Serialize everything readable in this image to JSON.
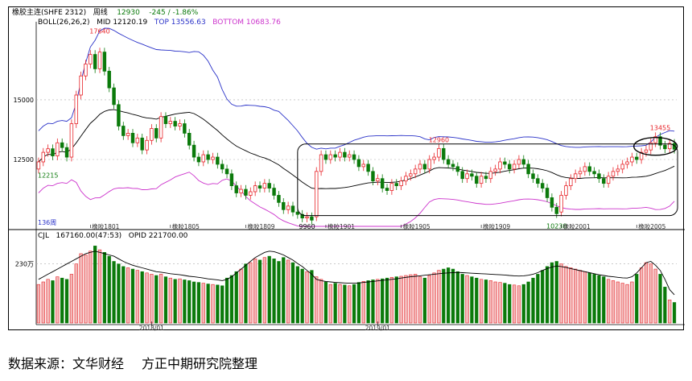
{
  "header": {
    "name": "橡胶主连(SHFE 2312)",
    "period": "周线",
    "price": "12930",
    "change": "-245 / -1.86%"
  },
  "boll": {
    "label": "BOLL(26,26,2)",
    "mid_label": "MID 12120.19",
    "top_label": "TOP 13556.63",
    "bottom_label": "BOTTOM 10683.76"
  },
  "volume_header": {
    "label": "CJL",
    "vol_label": "167160.00(47:53)",
    "oi_label": "OPID 221700.00"
  },
  "source": {
    "prefix": "数据来源：文华财经",
    "suffix": "方正中期研究院整理"
  },
  "chart_data": {
    "type": "candlestick",
    "y_ticks": [
      "15000",
      "12500"
    ],
    "ylim": [
      9700,
      18000
    ],
    "x_ticks": [
      "橡胶1801",
      "橡胶1805",
      "橡胶1809",
      "橡胶1901",
      "橡胶1905",
      "橡胶1909",
      "橡胶2001",
      "橡胶2005"
    ],
    "bottom_x_ticks": [
      "2018/01",
      "2019/01"
    ],
    "vol_tick": "230万",
    "annotations": {
      "high": "17640",
      "first_low": "12215",
      "mid_peak": "12960",
      "low": "10230",
      "right_high": "13455",
      "bar_count": "136周",
      "low_1901": "9960"
    },
    "colors": {
      "up": "#e8252a",
      "down": "#0b7a0b",
      "mid": "#000000",
      "top": "#2a32c8",
      "bottom": "#cc33cc",
      "vol_up_fill": "#f2b8b8"
    },
    "close": [
      12400,
      12800,
      12950,
      12650,
      13200,
      13000,
      12600,
      14000,
      15200,
      16000,
      16500,
      16900,
      16300,
      17000,
      16200,
      15500,
      14800,
      13900,
      13500,
      13600,
      13200,
      13400,
      12900,
      13300,
      13800,
      13400,
      14300,
      14000,
      14100,
      13900,
      14000,
      13600,
      13100,
      12600,
      12400,
      12700,
      12500,
      12600,
      12300,
      12100,
      11900,
      11400,
      11100,
      11250,
      11000,
      11150,
      11400,
      11300,
      11500,
      11300,
      11000,
      10700,
      10400,
      10550,
      10300,
      10200,
      10050,
      10100,
      9960,
      12000,
      12700,
      12500,
      12700,
      12600,
      12800,
      12600,
      12700,
      12500,
      12200,
      12300,
      12000,
      11600,
      11700,
      11300,
      11200,
      11500,
      11400,
      11600,
      11800,
      11900,
      12100,
      12300,
      12100,
      12500,
      12600,
      12960,
      12500,
      12300,
      12200,
      12000,
      11700,
      11900,
      11800,
      11500,
      11800,
      11700,
      12000,
      12100,
      12400,
      12300,
      12100,
      12300,
      12500,
      12300,
      11900,
      11700,
      11500,
      11300,
      10900,
      10500,
      10230,
      11000,
      11400,
      11700,
      11900,
      12000,
      12200,
      12000,
      11900,
      11700,
      11500,
      11800,
      12000,
      12100,
      12300,
      12400,
      12600,
      12500,
      12800,
      12900,
      13200,
      13455,
      13100,
      12950,
      13175,
      12930
    ],
    "open": [
      12100,
      12400,
      12800,
      12950,
      12650,
      13200,
      13000,
      12600,
      14000,
      15200,
      16000,
      16500,
      16900,
      16300,
      17000,
      16200,
      15500,
      14800,
      13900,
      13500,
      13600,
      13200,
      13400,
      12900,
      13300,
      13800,
      13400,
      14300,
      14000,
      14100,
      13900,
      14000,
      13600,
      13100,
      12600,
      12400,
      12700,
      12500,
      12600,
      12300,
      12100,
      11900,
      11400,
      11100,
      11250,
      11000,
      11150,
      11400,
      11300,
      11500,
      11300,
      11000,
      10700,
      10400,
      10550,
      10300,
      10200,
      10050,
      10100,
      10100,
      12000,
      12700,
      12500,
      12700,
      12600,
      12800,
      12600,
      12700,
      12500,
      12200,
      12300,
      12000,
      11600,
      11700,
      11300,
      11200,
      11500,
      11400,
      11600,
      11800,
      11900,
      12100,
      12300,
      12100,
      12500,
      12600,
      12960,
      12500,
      12300,
      12200,
      12000,
      11700,
      11900,
      11800,
      11500,
      11800,
      11700,
      12000,
      12100,
      12400,
      12300,
      12100,
      12300,
      12500,
      12300,
      11900,
      11700,
      11500,
      11300,
      10900,
      10500,
      10300,
      11000,
      11400,
      11700,
      11900,
      12000,
      12200,
      12000,
      11900,
      11700,
      11500,
      11800,
      12000,
      12100,
      12300,
      12400,
      12600,
      12500,
      12800,
      12900,
      13200,
      13455,
      13100,
      12950,
      13175
    ],
    "volume": [
      150,
      160,
      170,
      165,
      180,
      175,
      170,
      190,
      230,
      270,
      265,
      280,
      300,
      285,
      275,
      260,
      240,
      230,
      220,
      215,
      210,
      205,
      200,
      195,
      190,
      185,
      190,
      180,
      175,
      170,
      172,
      168,
      165,
      160,
      158,
      155,
      152,
      150,
      148,
      145,
      175,
      185,
      200,
      210,
      230,
      235,
      250,
      245,
      255,
      260,
      250,
      240,
      255,
      245,
      235,
      220,
      210,
      200,
      205,
      180,
      170,
      160,
      150,
      155,
      150,
      148,
      145,
      150,
      158,
      162,
      165,
      168,
      170,
      172,
      175,
      178,
      180,
      182,
      185,
      188,
      190,
      180,
      175,
      185,
      195,
      205,
      210,
      215,
      210,
      200,
      190,
      185,
      180,
      175,
      170,
      168,
      165,
      160,
      158,
      155,
      150,
      148,
      145,
      150,
      160,
      175,
      190,
      205,
      220,
      235,
      240,
      230,
      220,
      215,
      210,
      205,
      200,
      195,
      190,
      185,
      180,
      170,
      165,
      160,
      155,
      150,
      160,
      190,
      215,
      235,
      230,
      210,
      190,
      140,
      90,
      80
    ],
    "open_interest": [
      170,
      180,
      190,
      200,
      210,
      220,
      230,
      240,
      250,
      260,
      270,
      275,
      280,
      275,
      270,
      265,
      260,
      250,
      240,
      232,
      225,
      220,
      215,
      210,
      205,
      200,
      198,
      195,
      192,
      190,
      188,
      185,
      182,
      180,
      178,
      175,
      172,
      170,
      168,
      165,
      170,
      180,
      195,
      210,
      225,
      240,
      255,
      265,
      275,
      280,
      278,
      272,
      265,
      255,
      245,
      232,
      220,
      205,
      190,
      170,
      165,
      162,
      160,
      158,
      157,
      156,
      155,
      155,
      156,
      158,
      160,
      162,
      164,
      166,
      168,
      170,
      172,
      175,
      178,
      180,
      182,
      184,
      186,
      188,
      190,
      192,
      194,
      195,
      196,
      197,
      196,
      195,
      194,
      193,
      192,
      191,
      190,
      189,
      188,
      187,
      185,
      184,
      183,
      184,
      186,
      190,
      196,
      205,
      212,
      218,
      222,
      220,
      216,
      212,
      208,
      204,
      200,
      196,
      192,
      188,
      185,
      182,
      180,
      178,
      176,
      175,
      180,
      195,
      215,
      235,
      240,
      225,
      205,
      170,
      130,
      110
    ]
  }
}
